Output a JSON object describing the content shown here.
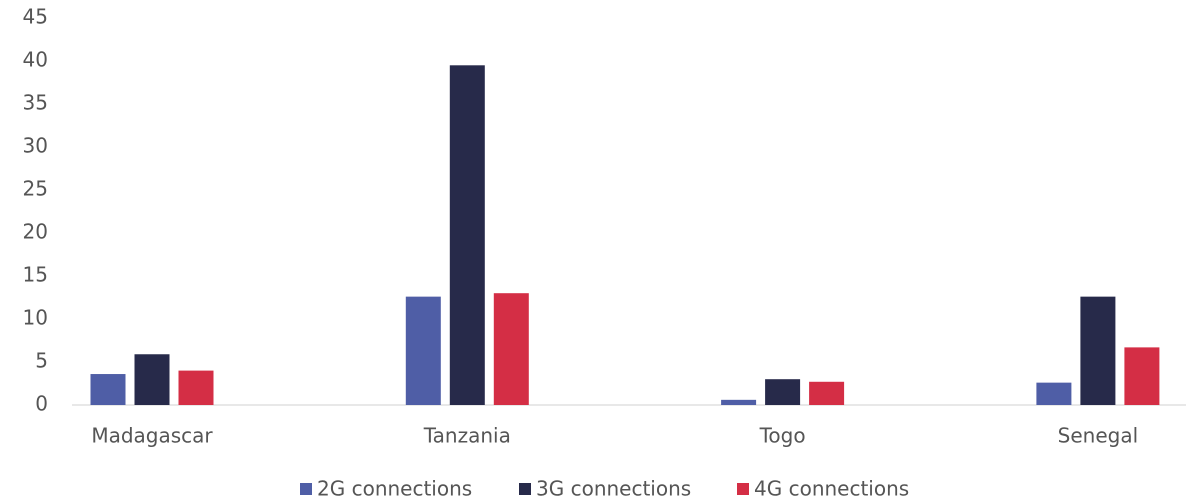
{
  "chart_data": {
    "type": "bar",
    "categories": [
      "Madagascar",
      "Tanzania",
      "Togo",
      "Senegal"
    ],
    "series": [
      {
        "name": "2G connections",
        "color": "#4f5ea6",
        "values": [
          3.6,
          12.6,
          0.6,
          2.6
        ]
      },
      {
        "name": "3G connections",
        "color": "#272a4a",
        "values": [
          5.9,
          39.5,
          3.0,
          12.6
        ]
      },
      {
        "name": "4G connections",
        "color": "#d42e45",
        "values": [
          4.0,
          13.0,
          2.7,
          6.7
        ]
      }
    ],
    "ylim": [
      0,
      45
    ],
    "yticks": [
      0,
      5,
      10,
      15,
      20,
      25,
      30,
      35,
      40,
      45
    ],
    "legend": "bottom"
  }
}
